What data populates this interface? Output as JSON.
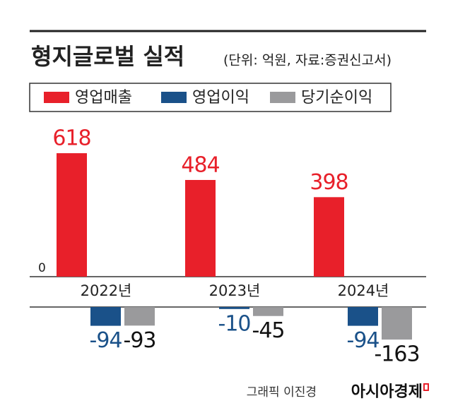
{
  "chart_data": {
    "type": "bar",
    "title": "형지글로벌 실적",
    "subtitle": "(단위: 억원, 자료:증권신고서)",
    "categories": [
      "2022년",
      "2023년",
      "2024년"
    ],
    "series": [
      {
        "name": "영업매출",
        "color": "#e8202a",
        "values": [
          618,
          484,
          398
        ]
      },
      {
        "name": "영업이익",
        "color": "#1a5189",
        "values": [
          -94,
          -10,
          -94
        ]
      },
      {
        "name": "당기순이익",
        "color": "#9a9a9c",
        "values": [
          -93,
          -45,
          -163
        ]
      }
    ],
    "ylim": [
      -170,
      650
    ],
    "yticks": [
      0
    ],
    "credit": "그래픽 이진경",
    "brand": "아시아경제"
  }
}
